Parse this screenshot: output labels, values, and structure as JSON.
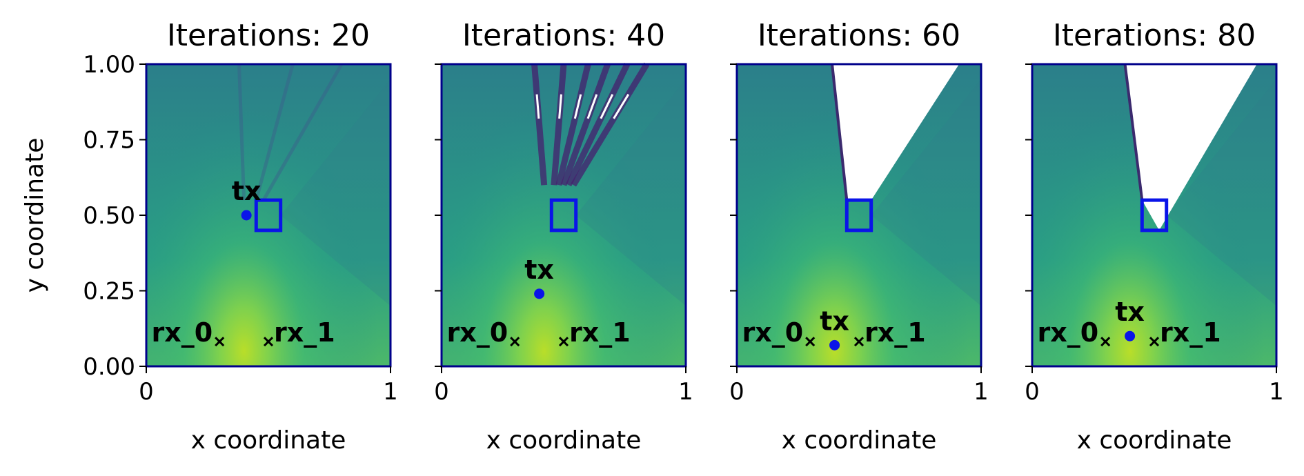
{
  "chart_data": [
    {
      "type": "heatmap",
      "title": "Iterations: 20",
      "xlabel": "x coordinate",
      "ylabel": "y coordinate",
      "xlim": [
        0,
        1
      ],
      "ylim": [
        0,
        1
      ],
      "xticks": [
        "0",
        "1"
      ],
      "yticks": [
        "0.00",
        "0.25",
        "0.50",
        "0.75",
        "1.00"
      ],
      "colormap": "viridis",
      "tx": {
        "label": "tx",
        "x": 0.41,
        "y": 0.5
      },
      "receivers": [
        {
          "label": "rx_0",
          "x": 0.3,
          "y": 0.1
        },
        {
          "label": "rx_1",
          "x": 0.5,
          "y": 0.1
        }
      ],
      "target_box": {
        "x0": 0.45,
        "y0": 0.45,
        "x1": 0.55,
        "y1": 0.55,
        "color": "#0a14e8"
      },
      "hotspot": {
        "x": 0.4,
        "y": 0.05
      },
      "void": null,
      "rays": [
        [
          0.4,
          0.55,
          0.38,
          1.0
        ],
        [
          0.45,
          0.55,
          0.6,
          1.0
        ],
        [
          0.48,
          0.55,
          0.8,
          1.0
        ]
      ]
    },
    {
      "type": "heatmap",
      "title": "Iterations: 40",
      "xlabel": "x coordinate",
      "xlim": [
        0,
        1
      ],
      "ylim": [
        0,
        1
      ],
      "xticks": [
        "0",
        "1"
      ],
      "colormap": "viridis",
      "tx": {
        "label": "tx",
        "x": 0.4,
        "y": 0.24
      },
      "receivers": [
        {
          "label": "rx_0",
          "x": 0.3,
          "y": 0.1
        },
        {
          "label": "rx_1",
          "x": 0.5,
          "y": 0.1
        }
      ],
      "target_box": {
        "x0": 0.45,
        "y0": 0.45,
        "x1": 0.55,
        "y1": 0.55,
        "color": "#0a14e8"
      },
      "hotspot": {
        "x": 0.42,
        "y": 0.05
      },
      "void": null,
      "rays": [
        [
          0.42,
          0.6,
          0.38,
          1.0
        ],
        [
          0.46,
          0.6,
          0.5,
          1.0
        ],
        [
          0.48,
          0.6,
          0.6,
          1.0
        ],
        [
          0.5,
          0.6,
          0.68,
          1.0
        ],
        [
          0.52,
          0.6,
          0.76,
          1.0
        ],
        [
          0.54,
          0.6,
          0.84,
          1.0
        ]
      ]
    },
    {
      "type": "heatmap",
      "title": "Iterations: 60",
      "xlabel": "x coordinate",
      "xlim": [
        0,
        1
      ],
      "ylim": [
        0,
        1
      ],
      "xticks": [
        "0",
        "1"
      ],
      "colormap": "viridis",
      "tx": {
        "label": "tx",
        "x": 0.4,
        "y": 0.07
      },
      "receivers": [
        {
          "label": "rx_0",
          "x": 0.3,
          "y": 0.1
        },
        {
          "label": "rx_1",
          "x": 0.5,
          "y": 0.1
        }
      ],
      "target_box": {
        "x0": 0.45,
        "y0": 0.45,
        "x1": 0.55,
        "y1": 0.55,
        "color": "#0a14e8"
      },
      "hotspot": {
        "x": 0.4,
        "y": 0.05
      },
      "void": [
        [
          0.39,
          1.0
        ],
        [
          0.45,
          0.55
        ],
        [
          0.55,
          0.55
        ],
        [
          0.91,
          1.0
        ]
      ],
      "rays": [
        [
          0.39,
          1.0,
          0.45,
          0.55
        ],
        [
          0.48,
          0.6,
          0.58,
          1.0
        ]
      ]
    },
    {
      "type": "heatmap",
      "title": "Iterations: 80",
      "xlabel": "x coordinate",
      "xlim": [
        0,
        1
      ],
      "ylim": [
        0,
        1
      ],
      "xticks": [
        "0",
        "1"
      ],
      "colormap": "viridis",
      "tx": {
        "label": "tx",
        "x": 0.4,
        "y": 0.1
      },
      "receivers": [
        {
          "label": "rx_0",
          "x": 0.3,
          "y": 0.1
        },
        {
          "label": "rx_1",
          "x": 0.5,
          "y": 0.1
        }
      ],
      "target_box": {
        "x0": 0.45,
        "y0": 0.45,
        "x1": 0.55,
        "y1": 0.55,
        "color": "#0a14e8"
      },
      "hotspot": {
        "x": 0.4,
        "y": 0.05
      },
      "void": [
        [
          0.38,
          1.0
        ],
        [
          0.45,
          0.55
        ],
        [
          0.52,
          0.45
        ],
        [
          0.92,
          1.0
        ]
      ],
      "rays": []
    }
  ]
}
